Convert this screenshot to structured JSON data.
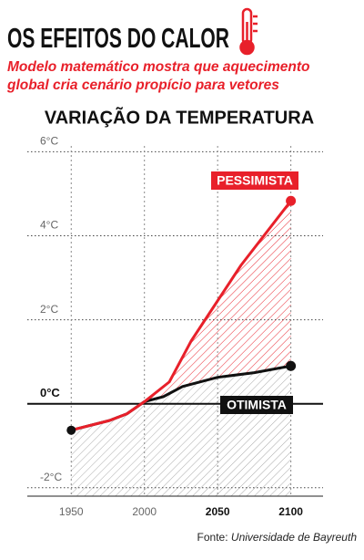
{
  "header": {
    "title": "OS EFEITOS DO CALOR",
    "subtitle": "Modelo matemático mostra que aquecimento global cria cenário propício para vetores"
  },
  "chart_data": {
    "type": "line",
    "title": "VARIAÇÃO DA TEMPERATURA",
    "series": [
      {
        "name": "PESSIMISTA",
        "color": "#e8202a",
        "x": [
          1950,
          1976,
          1988,
          2000,
          2017,
          2032,
          2066,
          2100
        ],
        "values": [
          -0.63,
          -0.4,
          -0.24,
          0.05,
          0.52,
          1.5,
          3.3,
          4.83
        ]
      },
      {
        "name": "OTIMISTA",
        "color": "#111111",
        "x": [
          1950,
          1976,
          1988,
          2000,
          2013,
          2026,
          2050,
          2075,
          2100
        ],
        "values": [
          -0.63,
          -0.4,
          -0.24,
          0.05,
          0.17,
          0.41,
          0.63,
          0.74,
          0.9
        ]
      }
    ],
    "xlim": [
      1920,
      2122
    ],
    "xticks": [
      1950,
      2000,
      2050,
      2100
    ],
    "ylim": [
      -2.2,
      6.4
    ],
    "yticks": [
      {
        "value": 6,
        "label": "6°C"
      },
      {
        "value": 4,
        "label": "4°C"
      },
      {
        "value": 2,
        "label": "2°C"
      },
      {
        "value": 0,
        "label": "0°C"
      },
      {
        "value": -2,
        "label": "-2°C"
      }
    ],
    "grid": true
  },
  "footer": {
    "source_label": "Fonte:",
    "source": "Universidade de Bayreuth"
  }
}
